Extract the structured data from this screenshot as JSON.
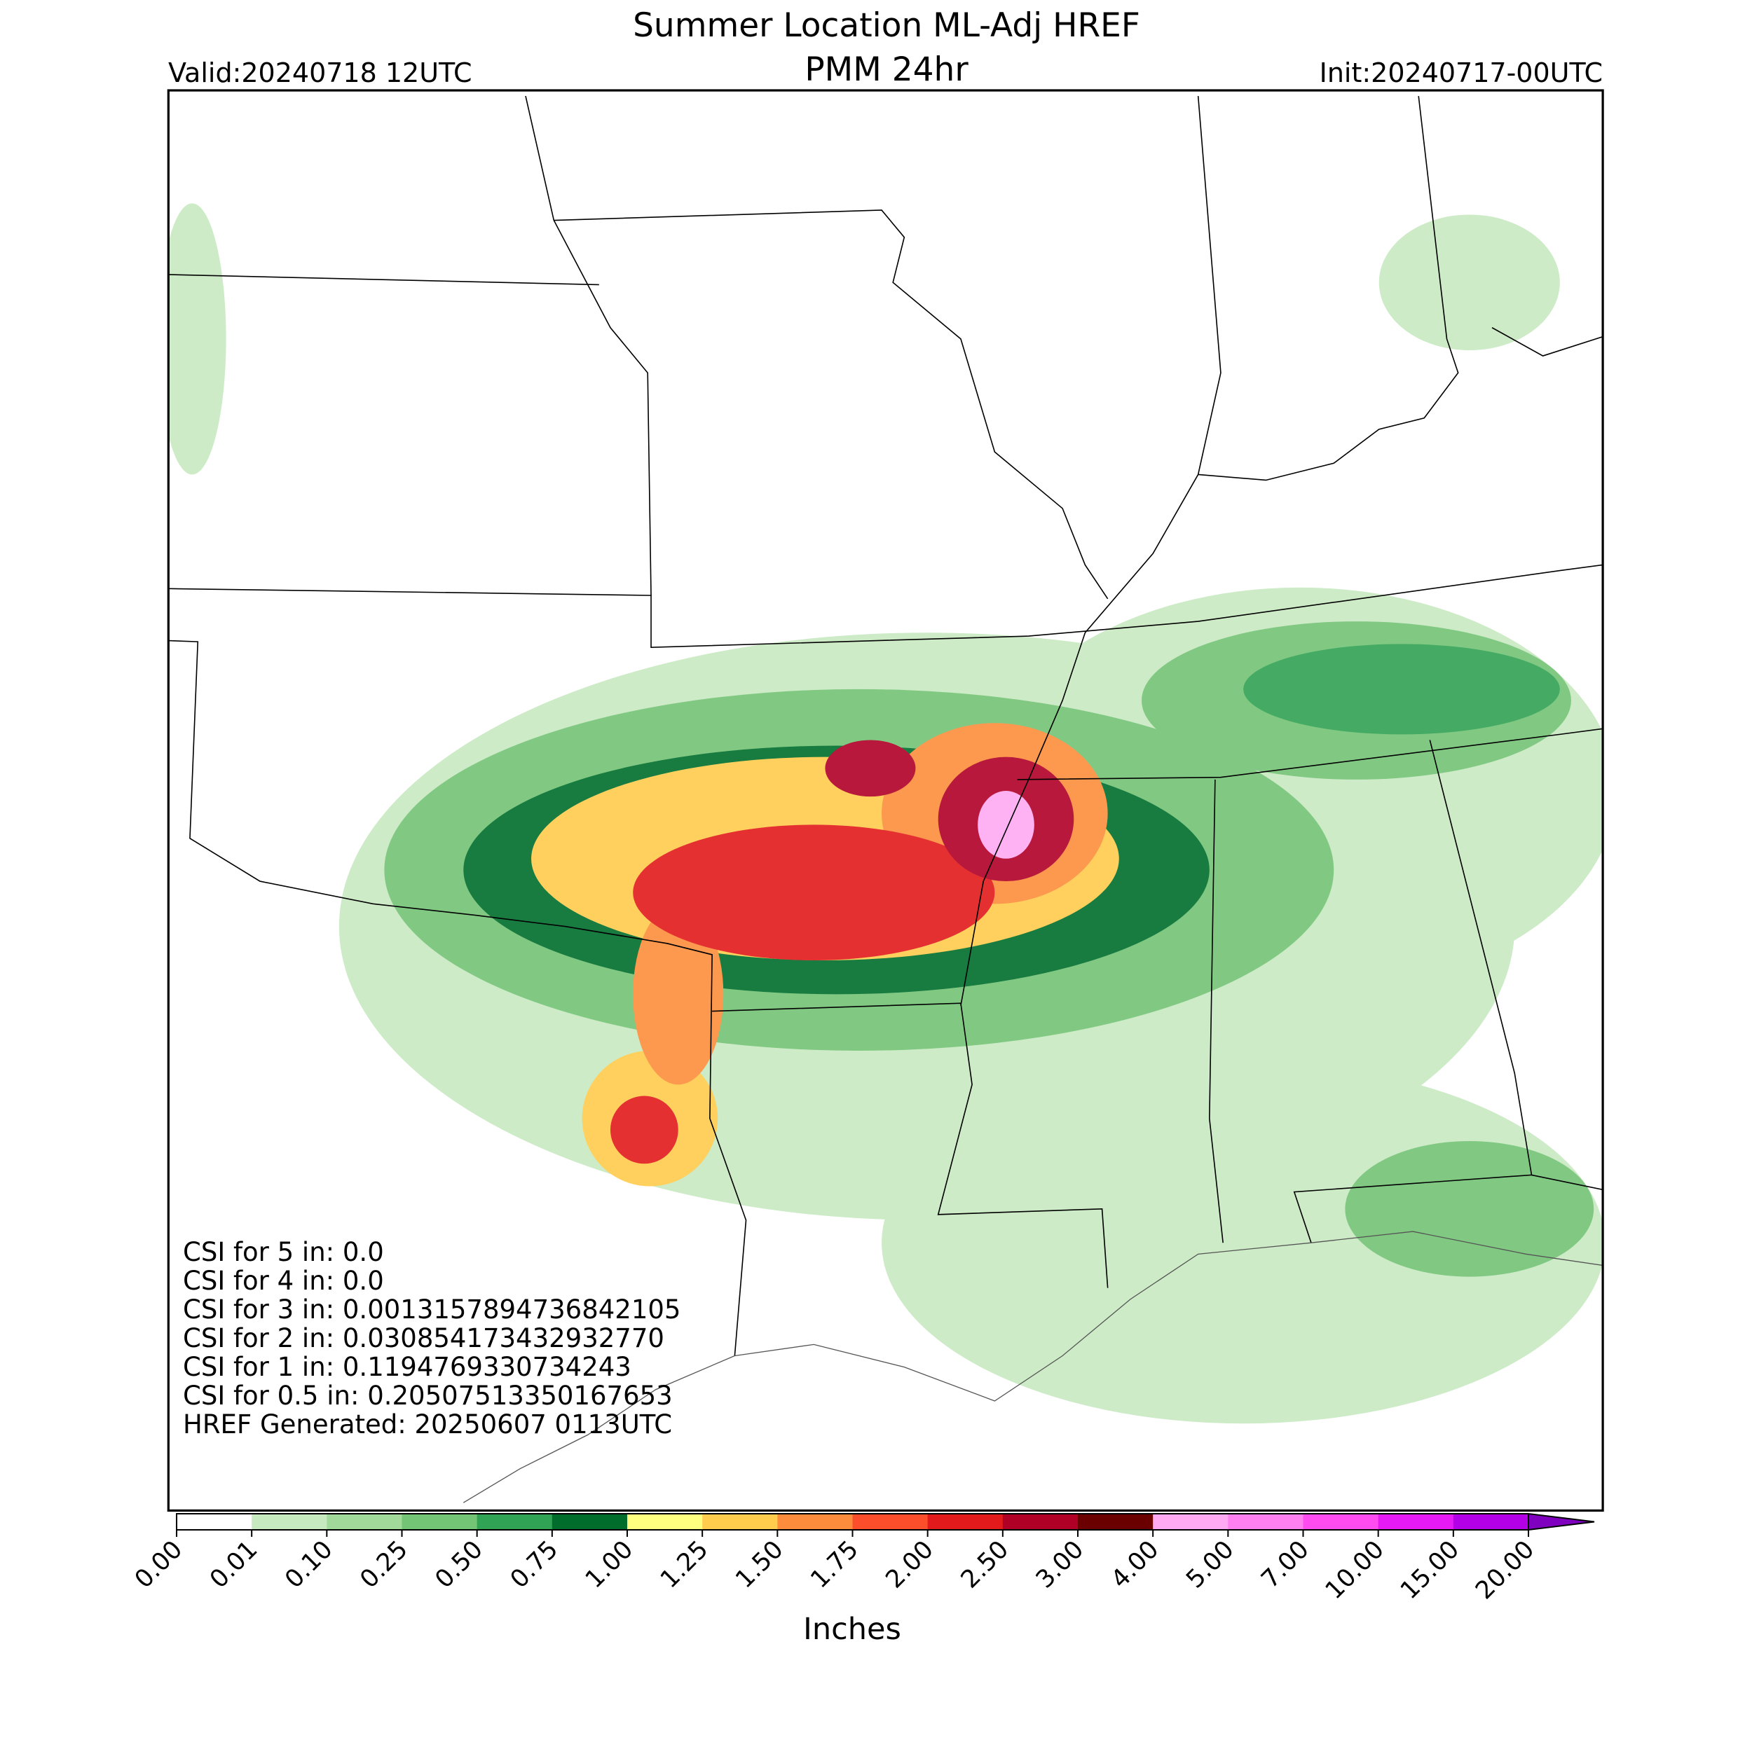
{
  "header": {
    "title": "Summer Location ML-Adj HREF",
    "subtitle": "PMM 24hr",
    "valid": "Valid:20240718 12UTC",
    "init": "Init:20240717-00UTC"
  },
  "stats": [
    "CSI for 5 in: 0.0",
    "CSI for 4 in: 0.0",
    "CSI for 3 in: 0.0013157894736842105",
    "CSI for 2 in: 0.030854173432932770",
    "CSI for 1 in: 0.1194769330734243",
    "CSI for 0.5 in: 0.20507513350167653",
    "HREF Generated: 20250607 0113UTC"
  ],
  "colorbar": {
    "label": "Inches",
    "ticks": [
      {
        "value": 0,
        "label": "0.00"
      },
      {
        "value": 0.01,
        "label": "0.01"
      },
      {
        "value": 0.1,
        "label": "0.10"
      },
      {
        "value": 0.25,
        "label": "0.25"
      },
      {
        "value": 0.5,
        "label": "0.50"
      },
      {
        "value": 0.75,
        "label": "0.75"
      },
      {
        "value": 1,
        "label": "1.00"
      },
      {
        "value": 1.25,
        "label": "1.25"
      },
      {
        "value": 1.5,
        "label": "1.50"
      },
      {
        "value": 1.75,
        "label": "1.75"
      },
      {
        "value": 2,
        "label": "2.00"
      },
      {
        "value": 2.5,
        "label": "2.50"
      },
      {
        "value": 3,
        "label": "3.00"
      },
      {
        "value": 4,
        "label": "4.00"
      },
      {
        "value": 5,
        "label": "5.00"
      },
      {
        "value": 7,
        "label": "7.00"
      },
      {
        "value": 10,
        "label": "10.00"
      },
      {
        "value": 15,
        "label": "15.00"
      },
      {
        "value": 20,
        "label": "20.00"
      }
    ],
    "colors": [
      "#ffffff",
      "#c7e9c0",
      "#a1d99b",
      "#74c476",
      "#31a354",
      "#006d2c",
      "#ffff80",
      "#ffcc4d",
      "#fd8d3c",
      "#fc4e2a",
      "#e31a1c",
      "#b10026",
      "#6b0000",
      "#ffaaf2",
      "#ff80f0",
      "#ff4cf0",
      "#e61af5",
      "#b300e6"
    ],
    "extend_color": "#8000c0"
  }
}
